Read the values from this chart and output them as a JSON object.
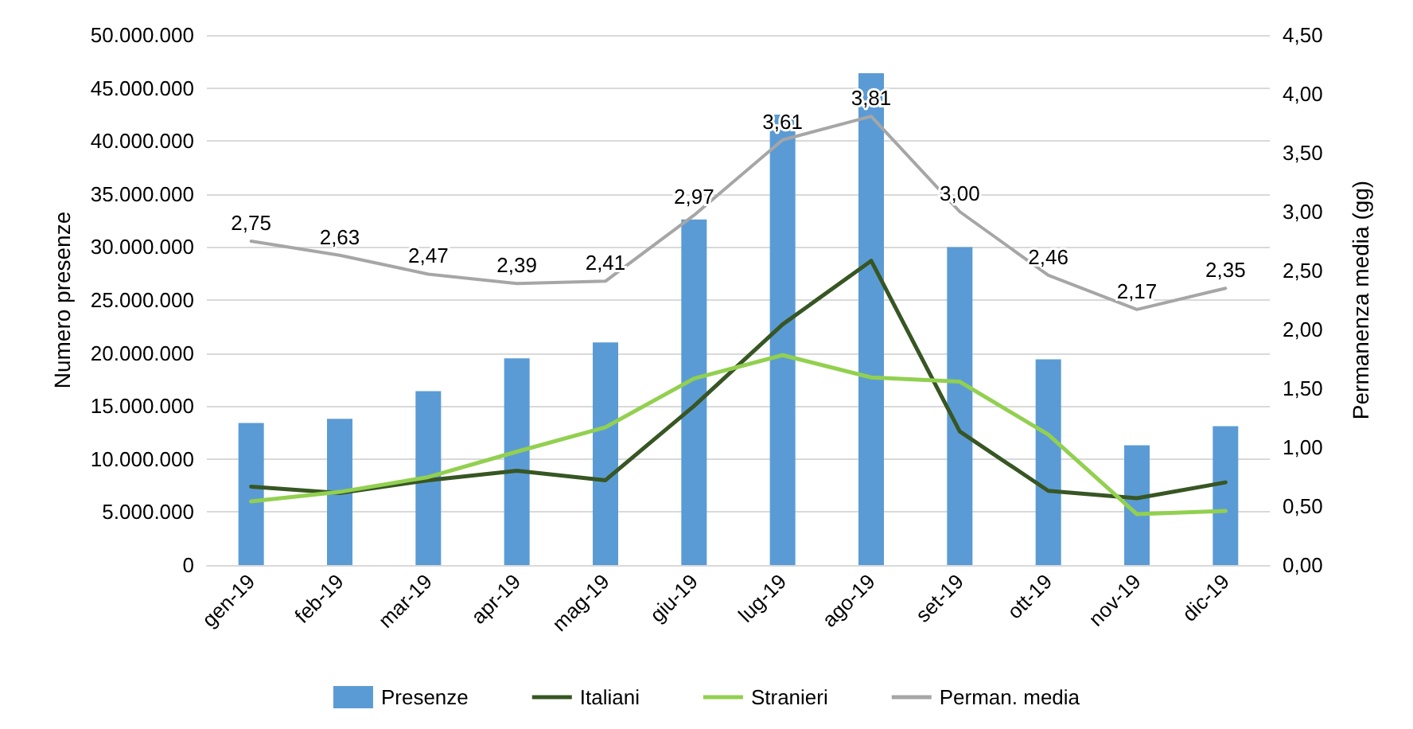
{
  "chart_data": {
    "type": "bar",
    "categories": [
      "gen-19",
      "feb-19",
      "mar-19",
      "apr-19",
      "mag-19",
      "giu-19",
      "lug-19",
      "ago-19",
      "set-19",
      "ott-19",
      "nov-19",
      "dic-19"
    ],
    "series": [
      {
        "name": "Presenze",
        "color": "#5b9bd5",
        "values": [
          13400000,
          13800000,
          16400000,
          19500000,
          21000000,
          32600000,
          42500000,
          46400000,
          30000000,
          19400000,
          11300000,
          13100000
        ]
      },
      {
        "name": "Italiani",
        "type": "line",
        "color": "#375623",
        "values": [
          7400000,
          6800000,
          8000000,
          8900000,
          8000000,
          15000000,
          22700000,
          28700000,
          12600000,
          7000000,
          6300000,
          7800000
        ]
      },
      {
        "name": "Stranieri",
        "type": "line",
        "color": "#92d050",
        "values": [
          6000000,
          6900000,
          8300000,
          10700000,
          13000000,
          17600000,
          19800000,
          17700000,
          17300000,
          12300000,
          4800000,
          5100000
        ]
      },
      {
        "name": "Perman. media",
        "type": "line",
        "axis": "y2",
        "color": "#a6a6a6",
        "values": [
          2.75,
          2.63,
          2.47,
          2.39,
          2.41,
          2.97,
          3.61,
          3.81,
          3.0,
          2.46,
          2.17,
          2.35
        ],
        "value_labels": [
          "2,75",
          "2,63",
          "2,47",
          "2,39",
          "2,41",
          "2,97",
          "3,61",
          "3,81",
          "3,00",
          "2,46",
          "2,17",
          "2,35"
        ]
      }
    ],
    "ylabel": "Numero presenze",
    "y2label": "Permanenza media (gg)",
    "ylim": [
      0,
      50000000
    ],
    "yticks": [
      0,
      {
        "value": 5000000,
        "label": "5.000.000"
      },
      {
        "value": 10000000,
        "label": "10.000.000"
      },
      {
        "value": 15000000,
        "label": "15.000.000"
      },
      {
        "value": 20000000,
        "label": "20.000.000"
      },
      {
        "value": 25000000,
        "label": "25.000.000"
      },
      {
        "value": 30000000,
        "label": "30.000.000"
      },
      {
        "value": 35000000,
        "label": "35.000.000"
      },
      {
        "value": 40000000,
        "label": "40.000.000"
      },
      {
        "value": 45000000,
        "label": "45.000.000"
      },
      {
        "value": 50000000,
        "label": "50.000.000"
      }
    ],
    "y2lim": [
      0,
      4.5
    ],
    "y2ticks": [
      {
        "value": 0,
        "label": "0,00"
      },
      {
        "value": 0.5,
        "label": "0,50"
      },
      {
        "value": 1,
        "label": "1,00"
      },
      {
        "value": 1.5,
        "label": "1,50"
      },
      {
        "value": 2,
        "label": "2,00"
      },
      {
        "value": 2.5,
        "label": "2,50"
      },
      {
        "value": 3,
        "label": "3,00"
      },
      {
        "value": 3.5,
        "label": "3,50"
      },
      {
        "value": 4,
        "label": "4,00"
      },
      {
        "value": 4.5,
        "label": "4,50"
      }
    ],
    "grid": "y",
    "legend": "bottom",
    "marker": "none",
    "line_style": "solid"
  }
}
